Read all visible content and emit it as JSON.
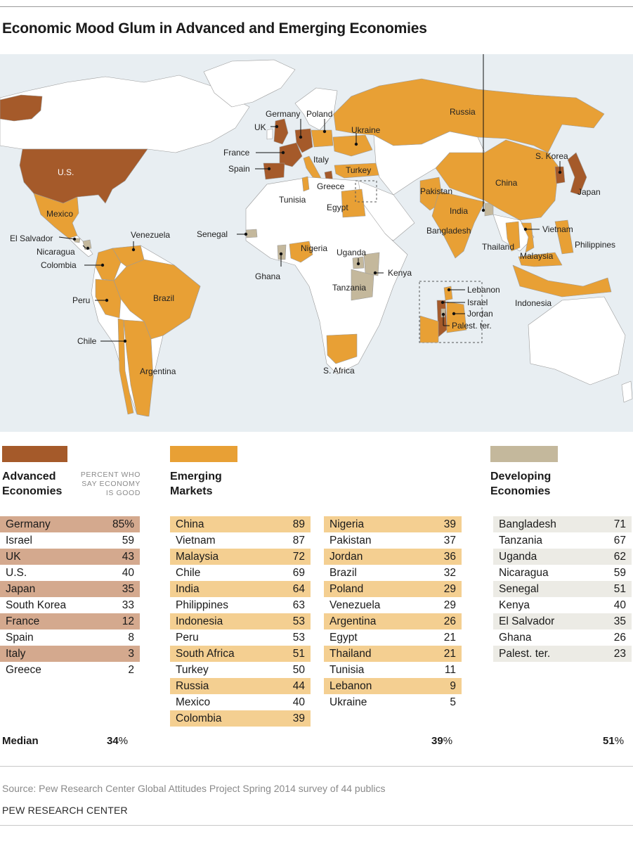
{
  "title": "Economic Mood Glum in Advanced and Emerging Economies",
  "colors": {
    "advanced": "#a55a2a",
    "emerging": "#e8a035",
    "developing": "#c4b89c",
    "advanced_row": "#d4a98e",
    "emerging_row": "#f4cf91",
    "developing_row": "#ecebe5",
    "ocean": "#e8eef2",
    "land": "#ffffff"
  },
  "map": {
    "labels": {
      "us": "U.S.",
      "mexico": "Mexico",
      "el_salvador": "El Salvador",
      "nicaragua": "Nicaragua",
      "colombia": "Colombia",
      "venezuela": "Venezuela",
      "peru": "Peru",
      "brazil": "Brazil",
      "chile": "Chile",
      "argentina": "Argentina",
      "uk": "UK",
      "france": "France",
      "spain": "Spain",
      "germany": "Germany",
      "poland": "Poland",
      "italy": "Italy",
      "greece": "Greece",
      "ukraine": "Ukraine",
      "russia": "Russia",
      "turkey": "Turkey",
      "tunisia": "Tunisia",
      "egypt": "Egypt",
      "senegal": "Senegal",
      "ghana": "Ghana",
      "nigeria": "Nigeria",
      "uganda": "Uganda",
      "kenya": "Kenya",
      "tanzania": "Tanzania",
      "s_africa": "S. Africa",
      "pakistan": "Pakistan",
      "india": "India",
      "bangladesh": "Bangladesh",
      "china": "China",
      "s_korea": "S. Korea",
      "japan": "Japan",
      "vietnam": "Vietnam",
      "thailand": "Thailand",
      "malaysia": "Malaysia",
      "philippines": "Philippines",
      "indonesia": "Indonesia",
      "lebanon": "Lebanon",
      "israel": "Israel",
      "jordan": "Jordan",
      "palest_ter": "Palest. ter."
    }
  },
  "groups": {
    "advanced": {
      "title": "Advanced\nEconomies",
      "note": "PERCENT WHO\nSAY ECONOMY\nIS GOOD",
      "rows": [
        {
          "name": "Germany",
          "value": "85%"
        },
        {
          "name": "Israel",
          "value": "59"
        },
        {
          "name": "UK",
          "value": "43"
        },
        {
          "name": "U.S.",
          "value": "40"
        },
        {
          "name": "Japan",
          "value": "35"
        },
        {
          "name": "South Korea",
          "value": "33"
        },
        {
          "name": "France",
          "value": "12"
        },
        {
          "name": "Spain",
          "value": "8"
        },
        {
          "name": "Italy",
          "value": "3"
        },
        {
          "name": "Greece",
          "value": "2"
        }
      ],
      "median": "34",
      "median_unit": "%"
    },
    "emerging": {
      "title": "Emerging\nMarkets",
      "rows_left": [
        {
          "name": "China",
          "value": "89"
        },
        {
          "name": "Vietnam",
          "value": "87"
        },
        {
          "name": "Malaysia",
          "value": "72"
        },
        {
          "name": "Chile",
          "value": "69"
        },
        {
          "name": "India",
          "value": "64"
        },
        {
          "name": "Philippines",
          "value": "63"
        },
        {
          "name": "Indonesia",
          "value": "53"
        },
        {
          "name": "Peru",
          "value": "53"
        },
        {
          "name": "South Africa",
          "value": "51"
        },
        {
          "name": "Turkey",
          "value": "50"
        },
        {
          "name": "Russia",
          "value": "44"
        },
        {
          "name": "Mexico",
          "value": "40"
        },
        {
          "name": "Colombia",
          "value": "39"
        }
      ],
      "rows_right": [
        {
          "name": "Nigeria",
          "value": "39"
        },
        {
          "name": "Pakistan",
          "value": "37"
        },
        {
          "name": "Jordan",
          "value": "36"
        },
        {
          "name": "Brazil",
          "value": "32"
        },
        {
          "name": "Poland",
          "value": "29"
        },
        {
          "name": "Venezuela",
          "value": "29"
        },
        {
          "name": "Argentina",
          "value": "26"
        },
        {
          "name": "Egypt",
          "value": "21"
        },
        {
          "name": "Thailand",
          "value": "21"
        },
        {
          "name": "Tunisia",
          "value": "11"
        },
        {
          "name": "Lebanon",
          "value": "9"
        },
        {
          "name": "Ukraine",
          "value": "5"
        }
      ],
      "median": "39",
      "median_unit": "%"
    },
    "developing": {
      "title": "Developing\nEconomies",
      "rows": [
        {
          "name": "Bangladesh",
          "value": "71"
        },
        {
          "name": "Tanzania",
          "value": "67"
        },
        {
          "name": "Uganda",
          "value": "62"
        },
        {
          "name": "Nicaragua",
          "value": "59"
        },
        {
          "name": "Senegal",
          "value": "51"
        },
        {
          "name": "Kenya",
          "value": "40"
        },
        {
          "name": "El Salvador",
          "value": "35"
        },
        {
          "name": "Ghana",
          "value": "26"
        },
        {
          "name": "Palest. ter.",
          "value": "23"
        }
      ],
      "median": "51",
      "median_unit": "%"
    }
  },
  "median_label": "Median",
  "source": "Source: Pew Research Center Global Attitudes Project Spring 2014 survey of 44 publics",
  "credit": "PEW RESEARCH CENTER"
}
